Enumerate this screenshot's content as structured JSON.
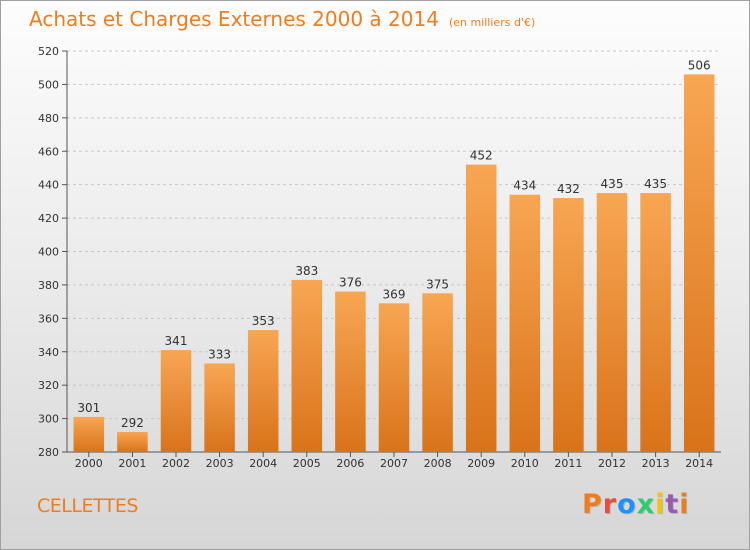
{
  "header": {
    "title": "Achats et Charges Externes 2000 à 2014",
    "unit": "(en milliers d'€)"
  },
  "footer": {
    "place": "CELLETTES",
    "brand": "Proxiti"
  },
  "colors": {
    "title": "#f07c1e",
    "bar_light": "#f8a653",
    "bar_dark": "#d9731a",
    "brand_letters": [
      "#f07c1e",
      "#e74c3c",
      "#1e90ff",
      "#2ecc71",
      "#f1c40f",
      "#9b59b6",
      "#e67e22"
    ]
  },
  "chart_data": {
    "type": "bar",
    "title": "Achats et Charges Externes 2000 à 2014",
    "subtitle": "(en milliers d'€)",
    "xlabel": "",
    "ylabel": "",
    "ylim": [
      280,
      520
    ],
    "yticks": [
      280,
      300,
      320,
      340,
      360,
      380,
      400,
      420,
      440,
      460,
      480,
      500,
      520
    ],
    "grid": true,
    "categories": [
      "2000",
      "2001",
      "2002",
      "2003",
      "2004",
      "2005",
      "2006",
      "2007",
      "2008",
      "2009",
      "2010",
      "2011",
      "2012",
      "2013",
      "2014"
    ],
    "values": [
      301,
      292,
      341,
      333,
      353,
      383,
      376,
      369,
      375,
      452,
      434,
      432,
      435,
      435,
      506
    ]
  }
}
